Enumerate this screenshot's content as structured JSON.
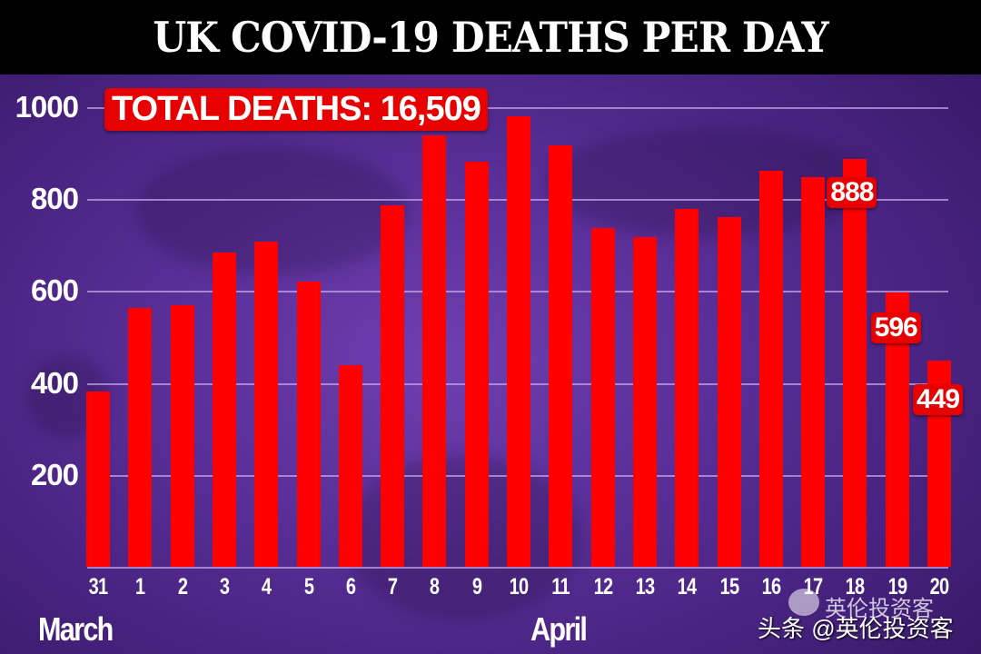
{
  "header": {
    "title": "UK COVID-19 DEATHS PER DAY"
  },
  "annotations": {
    "total_label": "TOTAL DEATHS: 16,509",
    "value_labels": [
      {
        "category": "18",
        "text": "888"
      },
      {
        "category": "19",
        "text": "596"
      },
      {
        "category": "20",
        "text": "449"
      }
    ]
  },
  "axis": {
    "y_ticks": [
      "1000",
      "800",
      "600",
      "400",
      "200"
    ],
    "x_ticks": [
      "31",
      "1",
      "2",
      "3",
      "4",
      "5",
      "6",
      "7",
      "8",
      "9",
      "10",
      "11",
      "12",
      "13",
      "14",
      "15",
      "16",
      "17",
      "18",
      "19",
      "20"
    ],
    "month_labels": {
      "march": "March",
      "april": "April"
    }
  },
  "watermark": {
    "text": "头条 @英伦投资客",
    "ghost_text": "英伦投资客"
  },
  "colors": {
    "bar": "#ff0000",
    "label_bg": "#e60000",
    "title_bg": "#000000",
    "background": "#5a2f99"
  },
  "chart_data": {
    "type": "bar",
    "title": "UK COVID-19 DEATHS PER DAY",
    "xlabel": "",
    "ylabel": "",
    "categories": [
      "31 Mar",
      "1 Apr",
      "2 Apr",
      "3 Apr",
      "4 Apr",
      "5 Apr",
      "6 Apr",
      "7 Apr",
      "8 Apr",
      "9 Apr",
      "10 Apr",
      "11 Apr",
      "12 Apr",
      "13 Apr",
      "14 Apr",
      "15 Apr",
      "16 Apr",
      "17 Apr",
      "18 Apr",
      "19 Apr",
      "20 Apr"
    ],
    "values": [
      381,
      563,
      569,
      684,
      708,
      621,
      439,
      786,
      938,
      881,
      980,
      917,
      737,
      717,
      778,
      761,
      861,
      847,
      888,
      596,
      449
    ],
    "ylim": [
      0,
      1000
    ],
    "yticks": [
      200,
      400,
      600,
      800,
      1000
    ],
    "grid": true,
    "legend": null,
    "annotations": [
      "TOTAL DEATHS: 16,509",
      "888",
      "596",
      "449"
    ]
  }
}
